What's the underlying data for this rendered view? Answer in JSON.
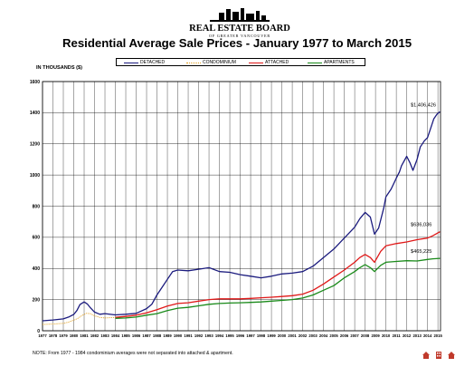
{
  "logo": {
    "title": "REAL ESTATE BOARD",
    "subtitle": "OF GREATER VANCOUVER"
  },
  "chart_data": {
    "type": "line",
    "title": "Residential Average Sale Prices  -  January 1977 to March 2015",
    "ylabel": "IN THOUSANDS ($)",
    "xlabel": "",
    "ylim": [
      0,
      1600
    ],
    "yticks": [
      "0",
      "200",
      "400",
      "600",
      "800",
      "1000",
      "1200",
      "1400",
      "1600"
    ],
    "xlim": [
      1977,
      2015.25
    ],
    "xticks": [
      "1977",
      "1978",
      "1979",
      "1980",
      "1981",
      "1982",
      "1983",
      "1984",
      "1985",
      "1986",
      "1987",
      "1988",
      "1989",
      "1990",
      "1991",
      "1992",
      "1993",
      "1994",
      "1995",
      "1996",
      "1997",
      "1998",
      "1999",
      "2000",
      "2001",
      "2002",
      "2003",
      "2004",
      "2005",
      "2006",
      "2007",
      "2008",
      "2009",
      "2010",
      "2011",
      "2012",
      "2013",
      "2014",
      "2015"
    ],
    "grid": true,
    "legend_position": "top",
    "series": [
      {
        "name": "DETACHED",
        "color": "#1b1b7e",
        "style": "solid",
        "x": [
          1977,
          1978,
          1979,
          1979.5,
          1980,
          1980.3,
          1980.6,
          1981,
          1981.3,
          1981.6,
          1982,
          1982.5,
          1983,
          1984,
          1985,
          1986,
          1987,
          1987.5,
          1988,
          1988.5,
          1989,
          1989.5,
          1990,
          1991,
          1992,
          1993,
          1994,
          1995,
          1996,
          1997,
          1998,
          1999,
          2000,
          2001,
          2002,
          2003,
          2004,
          2005,
          2006,
          2007,
          2007.5,
          2008,
          2008.5,
          2008.9,
          2009.3,
          2009.8,
          2010,
          2010.5,
          2011,
          2011.3,
          2011.5,
          2012,
          2012.3,
          2012.6,
          2013,
          2013.3,
          2013.7,
          2014,
          2014.3,
          2014.6,
          2014.9,
          2015.2
        ],
        "y": [
          64,
          69,
          76,
          88,
          105,
          130,
          168,
          185,
          172,
          148,
          120,
          106,
          110,
          102,
          106,
          112,
          142,
          170,
          230,
          280,
          330,
          380,
          390,
          385,
          395,
          405,
          380,
          375,
          360,
          350,
          340,
          350,
          365,
          370,
          380,
          415,
          470,
          525,
          595,
          665,
          720,
          760,
          730,
          620,
          660,
          790,
          860,
          910,
          980,
          1020,
          1060,
          1120,
          1080,
          1030,
          1100,
          1180,
          1220,
          1240,
          1300,
          1360,
          1390,
          1406
        ]
      },
      {
        "name": "CONDOMINIUM",
        "color": "#e2a020",
        "style": "dotted",
        "x": [
          1977,
          1978,
          1979,
          1979.5,
          1980,
          1980.4,
          1980.8,
          1981.2,
          1981.6,
          1982,
          1982.5,
          1983,
          1983.5,
          1984
        ],
        "y": [
          40,
          43,
          48,
          55,
          68,
          80,
          98,
          112,
          110,
          96,
          86,
          82,
          84,
          86
        ]
      },
      {
        "name": "ATTACHED",
        "color": "#e01818",
        "style": "solid",
        "x": [
          1984,
          1985,
          1986,
          1987,
          1988,
          1989,
          1990,
          1991,
          1992,
          1993,
          1994,
          1995,
          1996,
          1997,
          1998,
          1999,
          2000,
          2001,
          2002,
          2003,
          2004,
          2005,
          2006,
          2007,
          2007.5,
          2008,
          2008.5,
          2008.9,
          2009.5,
          2010,
          2011,
          2012,
          2013,
          2014,
          2014.5,
          2015.2
        ],
        "y": [
          86,
          92,
          100,
          115,
          135,
          158,
          175,
          180,
          190,
          200,
          205,
          205,
          205,
          208,
          212,
          215,
          220,
          225,
          235,
          260,
          300,
          345,
          390,
          440,
          470,
          490,
          470,
          440,
          510,
          545,
          560,
          570,
          585,
          595,
          610,
          636
        ]
      },
      {
        "name": "APARTMENTS",
        "color": "#1a8a1a",
        "style": "solid",
        "x": [
          1984,
          1985,
          1986,
          1987,
          1988,
          1989,
          1990,
          1991,
          1992,
          1993,
          1994,
          1995,
          1996,
          1997,
          1998,
          1999,
          2000,
          2001,
          2002,
          2003,
          2004,
          2005,
          2006,
          2007,
          2007.5,
          2008,
          2008.5,
          2008.9,
          2009.5,
          2010,
          2011,
          2012,
          2013,
          2014,
          2014.5,
          2015.2
        ],
        "y": [
          80,
          82,
          88,
          100,
          110,
          130,
          145,
          150,
          160,
          170,
          175,
          178,
          180,
          182,
          185,
          190,
          195,
          200,
          210,
          230,
          260,
          290,
          340,
          380,
          405,
          425,
          405,
          380,
          420,
          440,
          445,
          450,
          448,
          458,
          462,
          465
        ]
      }
    ],
    "annotations": [
      {
        "label": "$1,406,426",
        "series": "DETACHED"
      },
      {
        "label": "$636,036",
        "series": "ATTACHED"
      },
      {
        "label": "$465,225",
        "series": "APARTMENTS"
      }
    ]
  },
  "footnote": "NOTE: From 1977 - 1984 condominium averages were not separated into attached & apartment.",
  "corner_icons": [
    "house-icon",
    "building-icon",
    "house-icon"
  ]
}
